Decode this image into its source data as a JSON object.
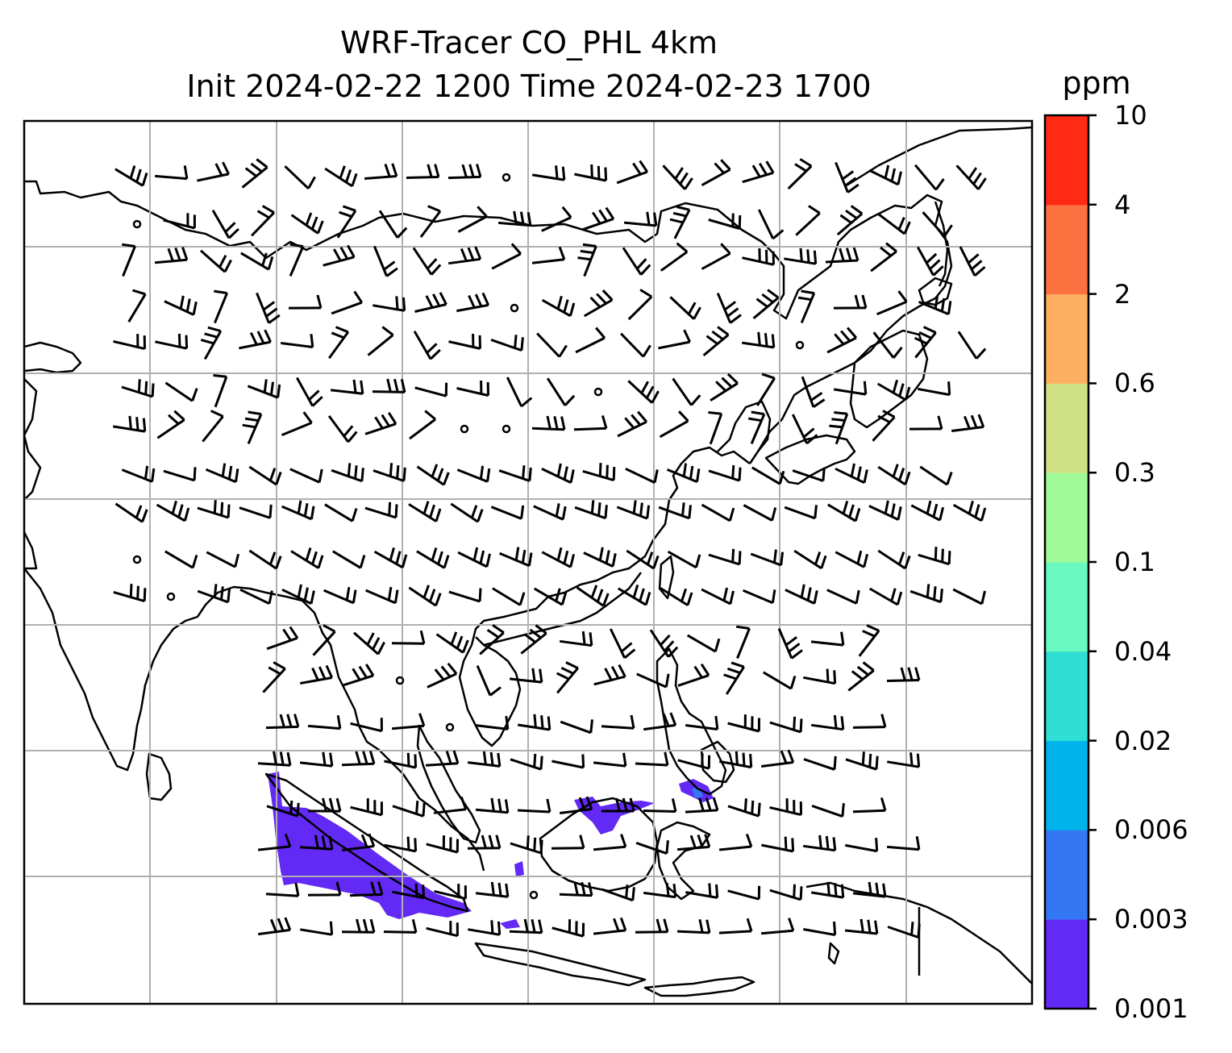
{
  "title": {
    "line1": "WRF-Tracer CO_PHL 4km",
    "line2": "Init 2024-02-22 1200 Time 2024-02-23 1700"
  },
  "colorbar": {
    "units": "ppm",
    "levels": [
      "0.001",
      "0.003",
      "0.006",
      "0.02",
      "0.04",
      "0.1",
      "0.3",
      "0.6",
      "2",
      "4",
      "10"
    ],
    "colors": [
      "#6329f5",
      "#3477f5",
      "#00b3ea",
      "#2fded5",
      "#68f9c0",
      "#9ffa97",
      "#d0e185",
      "#fdb061",
      "#fd7040",
      "#fe2a14"
    ]
  },
  "map": {
    "gridlines": "on",
    "coastline_color": "#000000",
    "tracer_color": "#6329f5",
    "wind_symbols": "barbs"
  }
}
